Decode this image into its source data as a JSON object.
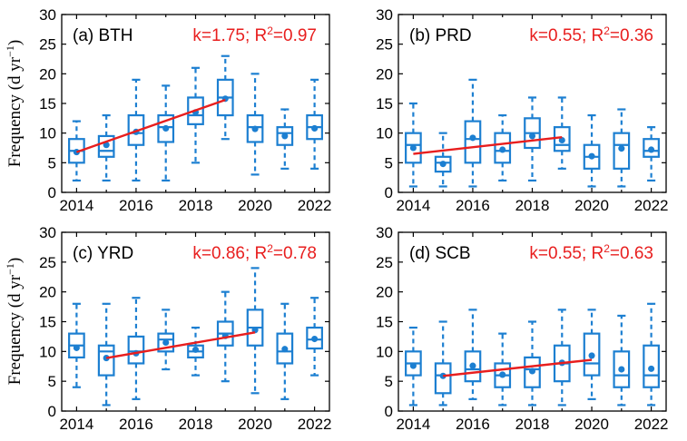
{
  "figure": {
    "ylabel": "Frequency (d yr",
    "ylabel_sup": "−1",
    "ylabel_close": ")"
  },
  "colors": {
    "box": "#1c7fd1",
    "trend": "#e81e1e",
    "axis": "#000000"
  },
  "chart_data": [
    {
      "type": "box",
      "panel_label": "(a) BTH",
      "annotation": {
        "k": "k=1.75;",
        "r2_prefix": "R",
        "r2_sup": "2",
        "r2_value": "=0.97"
      },
      "xlim": [
        2013.5,
        2022.5
      ],
      "ylim": [
        0,
        30
      ],
      "xticks": [
        2014,
        2016,
        2018,
        2020,
        2022
      ],
      "yticks": [
        0,
        5,
        10,
        15,
        20,
        25,
        30
      ],
      "grid": false,
      "years": [
        2014,
        2015,
        2016,
        2017,
        2018,
        2019,
        2020,
        2021,
        2022
      ],
      "boxes": [
        {
          "year": 2014,
          "min": 2,
          "q1": 5,
          "median": 7,
          "q3": 9,
          "max": 12,
          "mean": 6.8
        },
        {
          "year": 2015,
          "min": 2,
          "q1": 6,
          "median": 7,
          "q3": 9.5,
          "max": 13,
          "mean": 8
        },
        {
          "year": 2016,
          "min": 2,
          "q1": 8,
          "median": 10,
          "q3": 13,
          "max": 19,
          "mean": 10.2
        },
        {
          "year": 2017,
          "min": 2,
          "q1": 8.5,
          "median": 11,
          "q3": 13,
          "max": 18,
          "mean": 10.8
        },
        {
          "year": 2018,
          "min": 5,
          "q1": 11.5,
          "median": 13,
          "q3": 16,
          "max": 21,
          "mean": 13.5
        },
        {
          "year": 2019,
          "min": 9,
          "q1": 13,
          "median": 16,
          "q3": 19,
          "max": 23,
          "mean": 15.8
        },
        {
          "year": 2020,
          "min": 3,
          "q1": 8.5,
          "median": 11,
          "q3": 13,
          "max": 20,
          "mean": 10.7
        },
        {
          "year": 2021,
          "min": 4,
          "q1": 8,
          "median": 10,
          "q3": 11,
          "max": 14,
          "mean": 9.5
        },
        {
          "year": 2022,
          "min": 4,
          "q1": 9,
          "median": 11,
          "q3": 13,
          "max": 19,
          "mean": 10.8
        }
      ],
      "trend": {
        "x": [
          2014,
          2019
        ],
        "y": [
          6.8,
          15.6
        ]
      }
    },
    {
      "type": "box",
      "panel_label": "(b) PRD",
      "annotation": {
        "k": "k=0.55;",
        "r2_prefix": "R",
        "r2_sup": "2",
        "r2_value": "=0.36"
      },
      "xlim": [
        2013.5,
        2022.5
      ],
      "ylim": [
        0,
        30
      ],
      "xticks": [
        2014,
        2016,
        2018,
        2020,
        2022
      ],
      "yticks": [
        0,
        5,
        10,
        15,
        20,
        25,
        30
      ],
      "grid": false,
      "years": [
        2014,
        2015,
        2016,
        2017,
        2018,
        2019,
        2020,
        2021,
        2022
      ],
      "boxes": [
        {
          "year": 2014,
          "min": 1,
          "q1": 5,
          "median": 8,
          "q3": 10,
          "max": 15,
          "mean": 7.5
        },
        {
          "year": 2015,
          "min": 1,
          "q1": 3.5,
          "median": 5,
          "q3": 6,
          "max": 10,
          "mean": 4.8
        },
        {
          "year": 2016,
          "min": 1,
          "q1": 5,
          "median": 9,
          "q3": 12,
          "max": 19,
          "mean": 9.2
        },
        {
          "year": 2017,
          "min": 2,
          "q1": 5,
          "median": 7,
          "q3": 10,
          "max": 13,
          "mean": 7.2
        },
        {
          "year": 2018,
          "min": 2,
          "q1": 7.5,
          "median": 10,
          "q3": 12.5,
          "max": 16,
          "mean": 9.5
        },
        {
          "year": 2019,
          "min": 4,
          "q1": 7,
          "median": 8,
          "q3": 11,
          "max": 16,
          "mean": 8.8
        },
        {
          "year": 2020,
          "min": 1,
          "q1": 4,
          "median": 6,
          "q3": 8,
          "max": 13,
          "mean": 6.1
        },
        {
          "year": 2021,
          "min": 1,
          "q1": 4,
          "median": 8,
          "q3": 10,
          "max": 14,
          "mean": 7.4
        },
        {
          "year": 2022,
          "min": 2,
          "q1": 6,
          "median": 7,
          "q3": 9,
          "max": 11,
          "mean": 7.2
        }
      ],
      "trend": {
        "x": [
          2014,
          2019
        ],
        "y": [
          6.5,
          9.3
        ]
      }
    },
    {
      "type": "box",
      "panel_label": "(c) YRD",
      "annotation": {
        "k": "k=0.86;",
        "r2_prefix": "R",
        "r2_sup": "2",
        "r2_value": "=0.78"
      },
      "xlim": [
        2013.5,
        2022.5
      ],
      "ylim": [
        0,
        30
      ],
      "xticks": [
        2014,
        2016,
        2018,
        2020,
        2022
      ],
      "yticks": [
        0,
        5,
        10,
        15,
        20,
        25,
        30
      ],
      "grid": false,
      "years": [
        2014,
        2015,
        2016,
        2017,
        2018,
        2019,
        2020,
        2021,
        2022
      ],
      "boxes": [
        {
          "year": 2014,
          "min": 4,
          "q1": 9,
          "median": 11,
          "q3": 13,
          "max": 18,
          "mean": 10.6
        },
        {
          "year": 2015,
          "min": 1,
          "q1": 6,
          "median": 10,
          "q3": 11,
          "max": 18,
          "mean": 8.9
        },
        {
          "year": 2016,
          "min": 2,
          "q1": 8,
          "median": 10,
          "q3": 12.5,
          "max": 19,
          "mean": 9.7
        },
        {
          "year": 2017,
          "min": 7,
          "q1": 10,
          "median": 12,
          "q3": 13,
          "max": 17,
          "mean": 11.5
        },
        {
          "year": 2018,
          "min": 6,
          "q1": 9,
          "median": 10,
          "q3": 11,
          "max": 14,
          "mean": 10.3
        },
        {
          "year": 2019,
          "min": 5,
          "q1": 11,
          "median": 13,
          "q3": 15,
          "max": 20,
          "mean": 12.6
        },
        {
          "year": 2020,
          "min": 3,
          "q1": 11,
          "median": 14,
          "q3": 17,
          "max": 24,
          "mean": 13.6
        },
        {
          "year": 2021,
          "min": 2,
          "q1": 8,
          "median": 10,
          "q3": 13,
          "max": 18,
          "mean": 10.4
        },
        {
          "year": 2022,
          "min": 6,
          "q1": 10.5,
          "median": 12,
          "q3": 14,
          "max": 19,
          "mean": 12.1
        }
      ],
      "trend": {
        "x": [
          2015,
          2020
        ],
        "y": [
          8.9,
          13.2
        ]
      }
    },
    {
      "type": "box",
      "panel_label": "(d) SCB",
      "annotation": {
        "k": "k=0.55;",
        "r2_prefix": "R",
        "r2_sup": "2",
        "r2_value": "=0.63"
      },
      "xlim": [
        2013.5,
        2022.5
      ],
      "ylim": [
        0,
        30
      ],
      "xticks": [
        2014,
        2016,
        2018,
        2020,
        2022
      ],
      "yticks": [
        0,
        5,
        10,
        15,
        20,
        25,
        30
      ],
      "grid": false,
      "years": [
        2014,
        2015,
        2016,
        2017,
        2018,
        2019,
        2020,
        2021,
        2022
      ],
      "boxes": [
        {
          "year": 2014,
          "min": 1,
          "q1": 6,
          "median": 8,
          "q3": 10,
          "max": 14,
          "mean": 7.6
        },
        {
          "year": 2015,
          "min": 1,
          "q1": 3,
          "median": 6,
          "q3": 8,
          "max": 15,
          "mean": 5.9
        },
        {
          "year": 2016,
          "min": 2,
          "q1": 5,
          "median": 7,
          "q3": 10,
          "max": 17,
          "mean": 7.6
        },
        {
          "year": 2017,
          "min": 1,
          "q1": 4,
          "median": 6,
          "q3": 8,
          "max": 13,
          "mean": 6.1
        },
        {
          "year": 2018,
          "min": 1,
          "q1": 4,
          "median": 7,
          "q3": 9,
          "max": 15,
          "mean": 6.7
        },
        {
          "year": 2019,
          "min": 1,
          "q1": 5,
          "median": 8,
          "q3": 11,
          "max": 17,
          "mean": 8.1
        },
        {
          "year": 2020,
          "min": 2,
          "q1": 6,
          "median": 8,
          "q3": 13,
          "max": 17,
          "mean": 9.3
        },
        {
          "year": 2021,
          "min": 1,
          "q1": 4,
          "median": 6,
          "q3": 10,
          "max": 16,
          "mean": 7.0
        },
        {
          "year": 2022,
          "min": 1,
          "q1": 4,
          "median": 6,
          "q3": 11,
          "max": 18,
          "mean": 7.1
        }
      ],
      "trend": {
        "x": [
          2015,
          2020
        ],
        "y": [
          5.9,
          8.6
        ]
      }
    }
  ]
}
